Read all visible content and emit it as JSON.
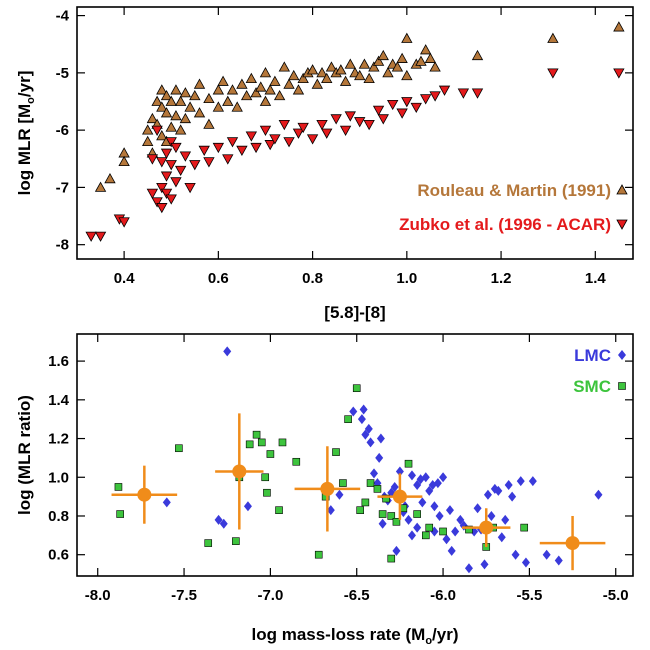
{
  "chart_data": [
    {
      "type": "scatter",
      "xlabel": "[5.8]-[8]",
      "ylabel": "log MLR [M",
      "ylabel_sub": "o",
      "ylabel_tail": "/yr]",
      "xlim": [
        0.3,
        1.48
      ],
      "ylim": [
        -8.25,
        -3.85
      ],
      "x_ticks": [
        "0.4",
        "0.6",
        "0.8",
        "1.0",
        "1.2",
        "1.4"
      ],
      "y_ticks": [
        "-8",
        "-7",
        "-6",
        "-5",
        "-4"
      ],
      "legend_position": "bottom-right",
      "series": [
        {
          "name": "Rouleau & Martin (1991)",
          "marker": "triangle-up",
          "color": "#b5773a",
          "points": [
            [
              0.35,
              -7.0
            ],
            [
              0.37,
              -6.85
            ],
            [
              0.4,
              -6.4
            ],
            [
              0.4,
              -6.55
            ],
            [
              0.45,
              -6.0
            ],
            [
              0.45,
              -6.2
            ],
            [
              0.46,
              -5.8
            ],
            [
              0.46,
              -6.4
            ],
            [
              0.47,
              -5.5
            ],
            [
              0.47,
              -5.9
            ],
            [
              0.48,
              -5.3
            ],
            [
              0.48,
              -5.6
            ],
            [
              0.48,
              -6.1
            ],
            [
              0.49,
              -5.4
            ],
            [
              0.49,
              -5.7
            ],
            [
              0.49,
              -6.2
            ],
            [
              0.5,
              -5.5
            ],
            [
              0.5,
              -5.95
            ],
            [
              0.51,
              -5.3
            ],
            [
              0.51,
              -5.75
            ],
            [
              0.52,
              -5.5
            ],
            [
              0.52,
              -6.0
            ],
            [
              0.53,
              -5.35
            ],
            [
              0.53,
              -5.8
            ],
            [
              0.54,
              -5.6
            ],
            [
              0.55,
              -5.4
            ],
            [
              0.56,
              -5.7
            ],
            [
              0.56,
              -5.2
            ],
            [
              0.58,
              -5.45
            ],
            [
              0.58,
              -5.9
            ],
            [
              0.6,
              -5.3
            ],
            [
              0.6,
              -5.6
            ],
            [
              0.61,
              -5.15
            ],
            [
              0.62,
              -5.5
            ],
            [
              0.63,
              -5.3
            ],
            [
              0.64,
              -5.6
            ],
            [
              0.65,
              -5.2
            ],
            [
              0.66,
              -5.4
            ],
            [
              0.67,
              -5.1
            ],
            [
              0.68,
              -5.35
            ],
            [
              0.69,
              -5.25
            ],
            [
              0.7,
              -5.5
            ],
            [
              0.7,
              -5.0
            ],
            [
              0.71,
              -5.3
            ],
            [
              0.72,
              -5.15
            ],
            [
              0.73,
              -5.4
            ],
            [
              0.74,
              -4.9
            ],
            [
              0.75,
              -5.2
            ],
            [
              0.76,
              -5.05
            ],
            [
              0.77,
              -5.3
            ],
            [
              0.78,
              -5.1
            ],
            [
              0.79,
              -5.0
            ],
            [
              0.8,
              -4.95
            ],
            [
              0.81,
              -5.2
            ],
            [
              0.82,
              -5.0
            ],
            [
              0.83,
              -5.1
            ],
            [
              0.84,
              -4.9
            ],
            [
              0.85,
              -5.0
            ],
            [
              0.86,
              -4.95
            ],
            [
              0.87,
              -5.15
            ],
            [
              0.88,
              -4.85
            ],
            [
              0.89,
              -5.0
            ],
            [
              0.9,
              -5.05
            ],
            [
              0.91,
              -4.85
            ],
            [
              0.92,
              -5.1
            ],
            [
              0.93,
              -4.9
            ],
            [
              0.94,
              -4.8
            ],
            [
              0.95,
              -4.7
            ],
            [
              0.96,
              -5.0
            ],
            [
              0.97,
              -4.85
            ],
            [
              0.98,
              -4.9
            ],
            [
              0.99,
              -4.75
            ],
            [
              1.0,
              -5.05
            ],
            [
              1.0,
              -4.4
            ],
            [
              1.02,
              -4.85
            ],
            [
              1.03,
              -4.8
            ],
            [
              1.04,
              -4.6
            ],
            [
              1.05,
              -4.75
            ],
            [
              1.06,
              -4.9
            ],
            [
              1.15,
              -4.7
            ],
            [
              1.31,
              -4.4
            ],
            [
              1.45,
              -4.2
            ]
          ]
        },
        {
          "name": "Zubko et al. (1996 - ACAR)",
          "marker": "triangle-down",
          "color": "#e41a1c",
          "points": [
            [
              0.33,
              -7.85
            ],
            [
              0.35,
              -7.85
            ],
            [
              0.39,
              -7.55
            ],
            [
              0.4,
              -7.6
            ],
            [
              0.46,
              -7.1
            ],
            [
              0.46,
              -6.5
            ],
            [
              0.47,
              -6.0
            ],
            [
              0.47,
              -7.25
            ],
            [
              0.48,
              -6.55
            ],
            [
              0.48,
              -7.0
            ],
            [
              0.48,
              -7.35
            ],
            [
              0.49,
              -6.4
            ],
            [
              0.49,
              -6.8
            ],
            [
              0.49,
              -7.1
            ],
            [
              0.5,
              -6.2
            ],
            [
              0.5,
              -6.6
            ],
            [
              0.5,
              -7.2
            ],
            [
              0.51,
              -6.9
            ],
            [
              0.51,
              -6.3
            ],
            [
              0.52,
              -6.7
            ],
            [
              0.53,
              -6.45
            ],
            [
              0.54,
              -7.0
            ],
            [
              0.55,
              -6.6
            ],
            [
              0.57,
              -6.35
            ],
            [
              0.58,
              -6.55
            ],
            [
              0.6,
              -6.3
            ],
            [
              0.62,
              -6.5
            ],
            [
              0.63,
              -6.2
            ],
            [
              0.65,
              -6.35
            ],
            [
              0.67,
              -6.1
            ],
            [
              0.68,
              -6.3
            ],
            [
              0.7,
              -6.0
            ],
            [
              0.71,
              -6.25
            ],
            [
              0.72,
              -6.15
            ],
            [
              0.74,
              -5.9
            ],
            [
              0.75,
              -6.2
            ],
            [
              0.77,
              -6.05
            ],
            [
              0.78,
              -5.95
            ],
            [
              0.8,
              -6.15
            ],
            [
              0.82,
              -5.9
            ],
            [
              0.83,
              -6.05
            ],
            [
              0.85,
              -5.8
            ],
            [
              0.87,
              -6.0
            ],
            [
              0.88,
              -5.75
            ],
            [
              0.9,
              -5.85
            ],
            [
              0.92,
              -5.9
            ],
            [
              0.94,
              -5.65
            ],
            [
              0.95,
              -5.8
            ],
            [
              0.97,
              -5.55
            ],
            [
              0.99,
              -5.7
            ],
            [
              1.0,
              -5.5
            ],
            [
              1.02,
              -5.6
            ],
            [
              1.04,
              -5.45
            ],
            [
              1.06,
              -5.4
            ],
            [
              1.08,
              -5.3
            ],
            [
              1.12,
              -5.35
            ],
            [
              1.15,
              -5.35
            ],
            [
              1.31,
              -5.0
            ],
            [
              1.45,
              -5.0
            ]
          ]
        }
      ]
    },
    {
      "type": "scatter",
      "xlabel": "log mass-loss rate (M",
      "xlabel_sub": "o",
      "xlabel_tail": "/yr)",
      "ylabel": "log (MLR ratio)",
      "xlim": [
        -8.12,
        -4.9
      ],
      "ylim": [
        0.49,
        1.74
      ],
      "x_ticks": [
        "-8.0",
        "-7.5",
        "-7.0",
        "-6.5",
        "-6.0",
        "-5.5",
        "-5.0"
      ],
      "x_tick_values": [
        -8.0,
        -7.5,
        -7.0,
        -6.5,
        -6.0,
        -5.5,
        -5.0
      ],
      "y_ticks": [
        "0.6",
        "0.8",
        "1.0",
        "1.2",
        "1.4",
        "1.6"
      ],
      "y_tick_values": [
        0.6,
        0.8,
        1.0,
        1.2,
        1.4,
        1.6
      ],
      "legend_position": "top-right",
      "series": [
        {
          "name": "LMC",
          "marker": "diamond",
          "color": "#3a3adb",
          "points": [
            [
              -7.6,
              0.87
            ],
            [
              -7.25,
              1.65
            ],
            [
              -7.3,
              0.78
            ],
            [
              -7.27,
              0.76
            ],
            [
              -7.13,
              0.85
            ],
            [
              -6.65,
              0.83
            ],
            [
              -6.6,
              0.91
            ],
            [
              -6.52,
              1.34
            ],
            [
              -6.47,
              1.3
            ],
            [
              -6.46,
              1.35
            ],
            [
              -6.45,
              1.22
            ],
            [
              -6.43,
              1.25
            ],
            [
              -6.42,
              1.18
            ],
            [
              -6.4,
              1.02
            ],
            [
              -6.38,
              0.97
            ],
            [
              -6.37,
              1.1
            ],
            [
              -6.36,
              1.2
            ],
            [
              -6.34,
              0.9
            ],
            [
              -6.32,
              0.88
            ],
            [
              -6.3,
              0.92
            ],
            [
              -6.28,
              0.95
            ],
            [
              -6.25,
              1.03
            ],
            [
              -6.23,
              0.82
            ],
            [
              -6.2,
              0.78
            ],
            [
              -6.18,
              1.01
            ],
            [
              -6.15,
              0.96
            ],
            [
              -6.13,
              0.99
            ],
            [
              -6.12,
              0.87
            ],
            [
              -6.1,
              1.0
            ],
            [
              -6.08,
              0.93
            ],
            [
              -6.06,
              0.96
            ],
            [
              -6.05,
              0.85
            ],
            [
              -6.03,
              0.97
            ],
            [
              -6.02,
              0.8
            ],
            [
              -6.0,
              1.0
            ],
            [
              -5.98,
              0.68
            ],
            [
              -5.96,
              0.83
            ],
            [
              -5.95,
              0.62
            ],
            [
              -5.93,
              0.72
            ],
            [
              -5.9,
              0.78
            ],
            [
              -5.88,
              0.75
            ],
            [
              -5.85,
              0.53
            ],
            [
              -5.82,
              0.72
            ],
            [
              -5.8,
              0.84
            ],
            [
              -5.78,
              0.73
            ],
            [
              -5.76,
              0.55
            ],
            [
              -5.74,
              0.91
            ],
            [
              -5.72,
              0.8
            ],
            [
              -5.7,
              0.94
            ],
            [
              -5.68,
              0.93
            ],
            [
              -5.66,
              0.69
            ],
            [
              -5.64,
              0.78
            ],
            [
              -5.62,
              0.96
            ],
            [
              -5.6,
              0.9
            ],
            [
              -5.58,
              0.6
            ],
            [
              -5.55,
              0.98
            ],
            [
              -5.52,
              0.56
            ],
            [
              -5.48,
              0.98
            ],
            [
              -5.4,
              0.6
            ],
            [
              -5.33,
              0.57
            ],
            [
              -5.1,
              0.91
            ],
            [
              -6.05,
              0.72
            ],
            [
              -6.15,
              0.74
            ],
            [
              -6.27,
              0.62
            ],
            [
              -6.35,
              0.76
            ],
            [
              -6.18,
              0.7
            ],
            [
              -6.22,
              0.85
            ]
          ]
        },
        {
          "name": "SMC",
          "marker": "square",
          "color": "#3dc43d",
          "points": [
            [
              -7.88,
              0.95
            ],
            [
              -7.87,
              0.81
            ],
            [
              -7.53,
              1.15
            ],
            [
              -7.36,
              0.66
            ],
            [
              -7.2,
              0.67
            ],
            [
              -7.18,
              1.0
            ],
            [
              -7.12,
              1.17
            ],
            [
              -7.08,
              1.22
            ],
            [
              -7.05,
              1.18
            ],
            [
              -7.03,
              1.0
            ],
            [
              -7.02,
              0.92
            ],
            [
              -7.0,
              1.12
            ],
            [
              -6.95,
              0.83
            ],
            [
              -6.93,
              1.18
            ],
            [
              -6.85,
              1.08
            ],
            [
              -6.72,
              0.6
            ],
            [
              -6.68,
              0.9
            ],
            [
              -6.62,
              1.13
            ],
            [
              -6.58,
              0.97
            ],
            [
              -6.55,
              1.3
            ],
            [
              -6.5,
              1.46
            ],
            [
              -6.48,
              0.83
            ],
            [
              -6.45,
              0.87
            ],
            [
              -6.42,
              0.97
            ],
            [
              -6.38,
              0.94
            ],
            [
              -6.35,
              0.81
            ],
            [
              -6.33,
              0.89
            ],
            [
              -6.3,
              0.8
            ],
            [
              -6.27,
              0.77
            ],
            [
              -6.23,
              0.84
            ],
            [
              -6.2,
              1.07
            ],
            [
              -6.15,
              0.81
            ],
            [
              -6.1,
              0.7
            ],
            [
              -6.08,
              0.74
            ],
            [
              -6.0,
              0.72
            ],
            [
              -5.85,
              0.73
            ],
            [
              -5.75,
              0.64
            ],
            [
              -5.71,
              0.74
            ],
            [
              -5.53,
              0.74
            ],
            [
              -6.3,
              0.58
            ]
          ]
        },
        {
          "name": "",
          "marker": "circle-errorbar",
          "color": "#f08c1a",
          "points": [
            [
              -7.73,
              0.91
            ],
            [
              -7.18,
              1.03
            ],
            [
              -6.67,
              0.94
            ],
            [
              -6.25,
              0.9
            ],
            [
              -5.75,
              0.74
            ],
            [
              -5.25,
              0.66
            ]
          ],
          "xerr": [
            0.19,
            0.14,
            0.19,
            0.13,
            0.14,
            0.19
          ],
          "yerr": [
            0.15,
            0.3,
            0.22,
            0.12,
            0.1,
            0.14
          ]
        }
      ]
    }
  ]
}
